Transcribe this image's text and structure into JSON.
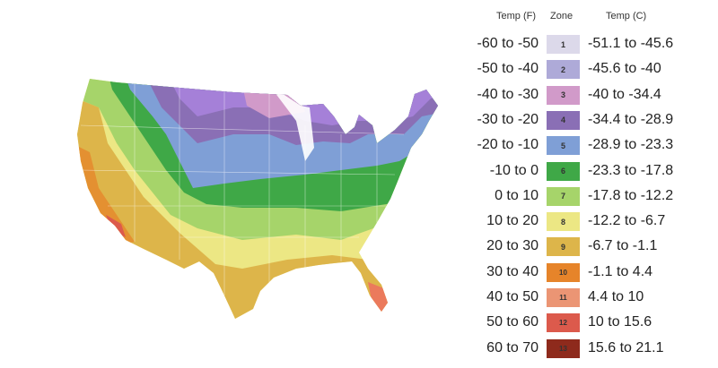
{
  "legend": {
    "headers": {
      "temp_f": "Temp (F)",
      "zone": "Zone",
      "temp_c": "Temp (C)"
    },
    "rows": [
      {
        "f": "-60 to -50",
        "zone": "1",
        "c": "-51.1 to -45.6",
        "color": "#dcd9ea"
      },
      {
        "f": "-50 to -40",
        "zone": "2",
        "c": "-45.6 to -40",
        "color": "#aeaad8"
      },
      {
        "f": "-40 to -30",
        "zone": "3",
        "c": "-40 to -34.4",
        "color": "#d19ac9"
      },
      {
        "f": "-30 to -20",
        "zone": "4",
        "c": "-34.4 to -28.9",
        "color": "#8a6fb5"
      },
      {
        "f": "-20 to -10",
        "zone": "5",
        "c": "-28.9 to -23.3",
        "color": "#7f9fd6"
      },
      {
        "f": "-10 to 0",
        "zone": "6",
        "c": "-23.3 to -17.8",
        "color": "#3fa847"
      },
      {
        "f": "0 to 10",
        "zone": "7",
        "c": "-17.8 to -12.2",
        "color": "#a6d46a"
      },
      {
        "f": "10 to 20",
        "zone": "8",
        "c": "-12.2 to -6.7",
        "color": "#ece784"
      },
      {
        "f": "20 to 30",
        "zone": "9",
        "c": "-6.7 to -1.1",
        "color": "#ddb54a"
      },
      {
        "f": "30 to 40",
        "zone": "10",
        "c": "-1.1 to 4.4",
        "color": "#e6842a"
      },
      {
        "f": "40 to 50",
        "zone": "11",
        "c": "4.4 to 10",
        "color": "#eb9574"
      },
      {
        "f": "50 to 60",
        "zone": "12",
        "c": "10 to 15.6",
        "color": "#dc5a4c"
      },
      {
        "f": "60 to 70",
        "zone": "13",
        "c": "15.6 to 21.1",
        "color": "#8e2a1c"
      }
    ]
  }
}
